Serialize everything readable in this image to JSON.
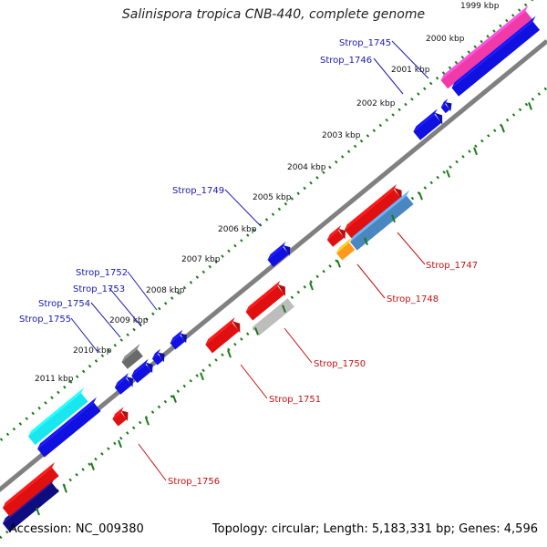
{
  "title": "Salinispora tropica CNB-440, complete genome",
  "footer": {
    "accession": "Accession: NC_009380",
    "topology": "Topology: circular; Length: 5,183,331 bp; Genes: 4,596"
  },
  "ticks": [
    "1999 kbp",
    "2000 kbp",
    "2001 kbp",
    "2002 kbp",
    "2003 kbp",
    "2004 kbp",
    "2005 kbp",
    "2006 kbp",
    "2007 kbp",
    "2008 kbp",
    "2009 kbp",
    "2010 kbp",
    "2011 kbp"
  ],
  "genes": [
    {
      "label": "Strop_1745",
      "strand": "plus"
    },
    {
      "label": "Strop_1746",
      "strand": "plus"
    },
    {
      "label": "Strop_1747",
      "strand": "minus"
    },
    {
      "label": "Strop_1748",
      "strand": "minus"
    },
    {
      "label": "Strop_1749",
      "strand": "plus"
    },
    {
      "label": "Strop_1750",
      "strand": "minus"
    },
    {
      "label": "Strop_1751",
      "strand": "minus"
    },
    {
      "label": "Strop_1752",
      "strand": "plus"
    },
    {
      "label": "Strop_1753",
      "strand": "plus"
    },
    {
      "label": "Strop_1754",
      "strand": "plus"
    },
    {
      "label": "Strop_1755",
      "strand": "plus"
    },
    {
      "label": "Strop_1756",
      "strand": "minus"
    }
  ],
  "colors": {
    "plus_strand": "#1010e0",
    "minus_strand": "#e01010",
    "plus_label": "#1a1ab0",
    "minus_label": "#c81010",
    "backbone": "#808080",
    "tick": "#1a7a1a",
    "pink_feature": "#f03aa8",
    "cyan_feature": "#19e6ee",
    "navy_feature": "#0d0d80",
    "steel_feature": "#4a86bf",
    "orange_feature": "#ff9a1a",
    "gray_feature": "#bdbdbd",
    "darkgray_feature": "#6a6a6a"
  }
}
